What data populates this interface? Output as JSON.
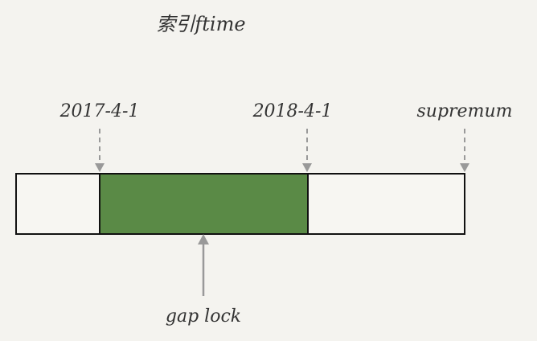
{
  "title": "索引ftime",
  "markers": [
    {
      "id": "left",
      "label": "2017-4-1"
    },
    {
      "id": "right",
      "label": "2018-4-1"
    },
    {
      "id": "end",
      "label": "supremum"
    }
  ],
  "gap_label": "gap lock",
  "colors": {
    "background": "#f4f3ef",
    "gap_fill": "#5a8a46",
    "cell_fill": "#f7f6f2",
    "border": "#111111",
    "dashed_arrow": "#999999",
    "solid_arrow": "#999999",
    "text": "#333333"
  }
}
